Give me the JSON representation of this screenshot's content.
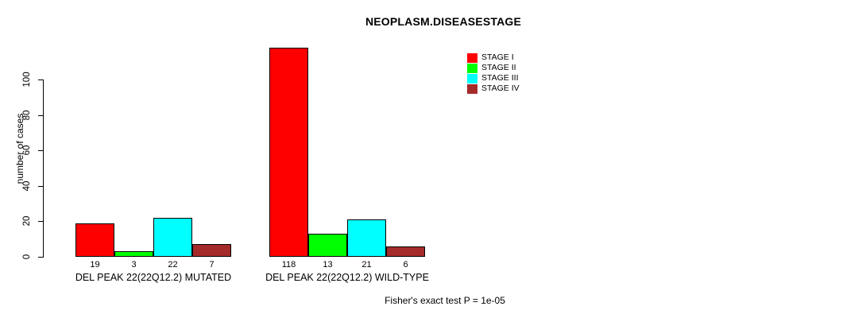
{
  "title": "NEOPLASM.DISEASESTAGE",
  "y_axis": {
    "label": "number of cases",
    "ticks": [
      0,
      20,
      40,
      60,
      80,
      100
    ]
  },
  "footnote": "Fisher's exact test P = 1e-05",
  "legend": {
    "items": [
      {
        "label": "STAGE I",
        "color": "#FF0000"
      },
      {
        "label": "STAGE II",
        "color": "#00FF00"
      },
      {
        "label": "STAGE III",
        "color": "#00FFFF"
      },
      {
        "label": "STAGE IV",
        "color": "#A52A2A"
      }
    ]
  },
  "chart_data": {
    "type": "bar",
    "title": "NEOPLASM.DISEASESTAGE",
    "xlabel": "",
    "ylabel": "number of cases",
    "categories": [
      "DEL PEAK 22(22Q12.2) MUTATED",
      "DEL PEAK 22(22Q12.2) WILD-TYPE"
    ],
    "series": [
      {
        "name": "STAGE I",
        "color": "#FF0000",
        "values": [
          19,
          118
        ]
      },
      {
        "name": "STAGE II",
        "color": "#00FF00",
        "values": [
          3,
          13
        ]
      },
      {
        "name": "STAGE III",
        "color": "#00FFFF",
        "values": [
          22,
          21
        ]
      },
      {
        "name": "STAGE IV",
        "color": "#A52A2A",
        "values": [
          7,
          6
        ]
      }
    ],
    "value_labels": [
      [
        19,
        3,
        22,
        7
      ],
      [
        118,
        13,
        21,
        6
      ]
    ],
    "ylim": [
      0,
      118
    ],
    "yticks": [
      0,
      20,
      40,
      60,
      80,
      100
    ],
    "grid": false,
    "bar_border_color": "#000000",
    "legend_position": "top-right",
    "annotation": "Fisher's exact test P = 1e-05"
  }
}
